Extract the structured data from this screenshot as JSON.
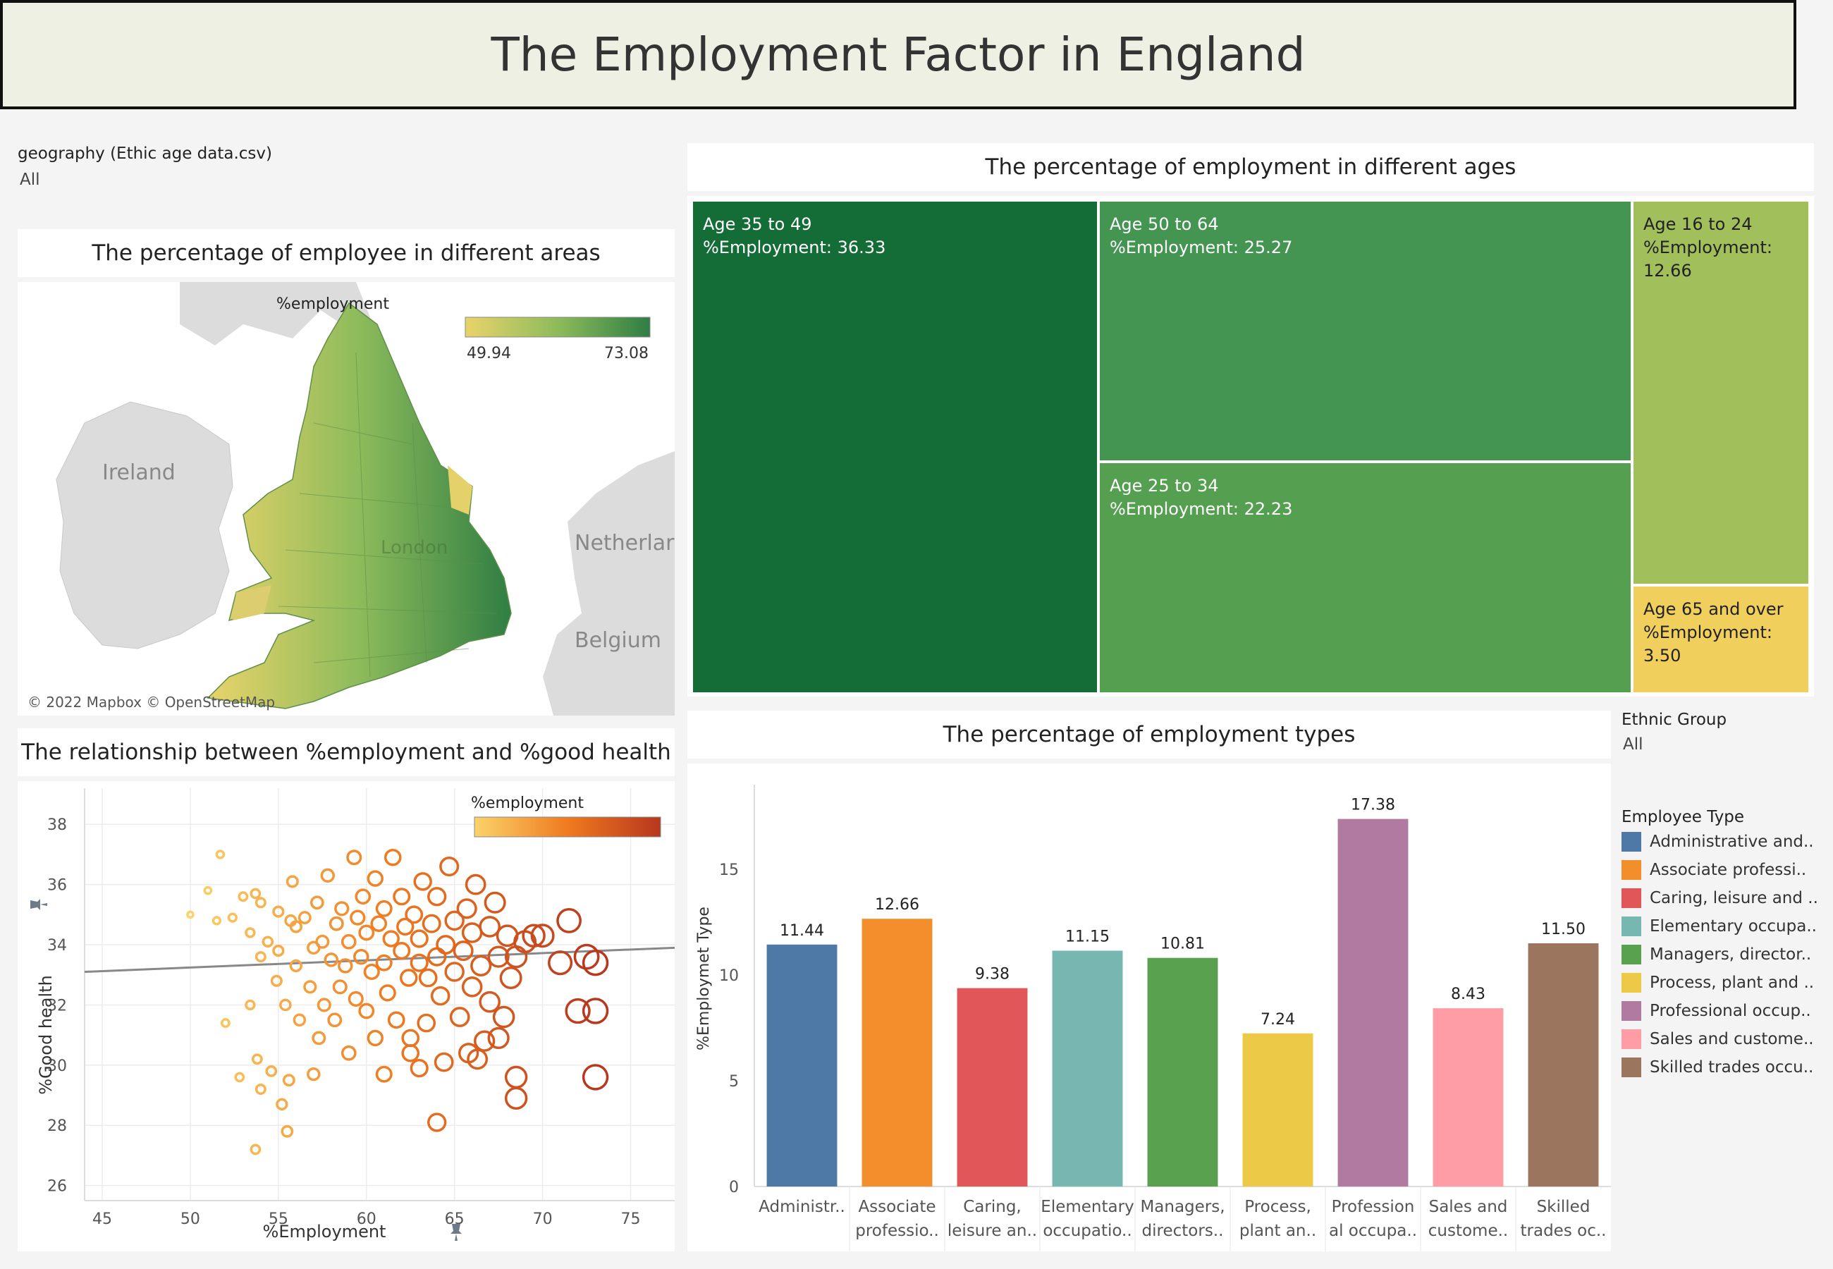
{
  "page_title": "The Employment Factor in England",
  "filters": {
    "geography": {
      "label": "geography (Ethic age data.csv)",
      "value": "All"
    },
    "ethnic": {
      "label": "Ethnic Group",
      "value": "All"
    }
  },
  "map": {
    "title": "The percentage of employee in different areas",
    "legend_title": "%employment",
    "legend_min": "49.94",
    "legend_max": "73.08",
    "labels": {
      "ireland": "Ireland",
      "netherlands": "Netherlar",
      "belgium": "Belgium",
      "london": "London"
    },
    "attribution": "© 2022 Mapbox © OpenStreetMap"
  },
  "scatter": {
    "title": "The relationship between %employment and %good health",
    "legend_title": "%employment",
    "xlabel": "%Employment",
    "ylabel": "%Good health"
  },
  "treemap": {
    "title": "The percentage of employment in different ages",
    "measure_label": "%Employment:",
    "cells": [
      {
        "label": "Age 35 to 49",
        "value": "36.33",
        "color": "#146c37",
        "text_color": "#ffffff"
      },
      {
        "label": "Age 50 to 64",
        "value": "25.27",
        "color": "#439551",
        "text_color": "#ffffff"
      },
      {
        "label": "Age 25 to 34",
        "value": "22.23",
        "color": "#55a050",
        "text_color": "#ffffff"
      },
      {
        "label": "Age 16 to 24",
        "value": "12.66",
        "color": "#a1bf5a",
        "text_color": "#222222"
      },
      {
        "label": "Age 65 and over",
        "value": "3.50",
        "color": "#f0cf5d",
        "text_color": "#222222"
      }
    ]
  },
  "bar": {
    "title": "The percentage of employment types",
    "legend_title": "Employee Type",
    "legend": [
      {
        "name": "Administrative and..",
        "color": "#4e79a7"
      },
      {
        "name": "Associate professi..",
        "color": "#f28e2b"
      },
      {
        "name": "Caring, leisure and ..",
        "color": "#e15759"
      },
      {
        "name": "Elementary occupa..",
        "color": "#76b7b2"
      },
      {
        "name": "Managers, director..",
        "color": "#59a14f"
      },
      {
        "name": "Process, plant and ..",
        "color": "#edc948"
      },
      {
        "name": "Professional occup..",
        "color": "#b07aa1"
      },
      {
        "name": "Sales and custome..",
        "color": "#ff9da7"
      },
      {
        "name": "Skilled trades occu..",
        "color": "#9c755f"
      }
    ]
  },
  "chart_data": [
    {
      "type": "bar",
      "title": "The percentage of employment types",
      "ylabel": "%Employmet Type",
      "xlabel": "",
      "categories": [
        [
          "Administr.."
        ],
        [
          "Associate",
          "professio.."
        ],
        [
          "Caring,",
          "leisure an.."
        ],
        [
          "Elementary",
          "occupatio.."
        ],
        [
          "Managers,",
          "directors.."
        ],
        [
          "Process,",
          "plant an.."
        ],
        [
          "Profession",
          "al occupa.."
        ],
        [
          "Sales and",
          "custome.."
        ],
        [
          "Skilled",
          "trades oc.."
        ]
      ],
      "values": [
        11.44,
        12.66,
        9.38,
        11.15,
        10.81,
        7.24,
        17.38,
        8.43,
        11.5
      ],
      "value_labels": [
        "11.44",
        "12.66",
        "9.38",
        "11.15",
        "10.81",
        "7.24",
        "17.38",
        "8.43",
        "11.50"
      ],
      "colors": [
        "#4e79a7",
        "#f28e2b",
        "#e15759",
        "#76b7b2",
        "#59a14f",
        "#edc948",
        "#b07aa1",
        "#ff9da7",
        "#9c755f"
      ],
      "ylim": [
        0,
        19
      ],
      "yticks": [
        0,
        5,
        10,
        15
      ],
      "grid": false
    },
    {
      "type": "scatter",
      "title": "The relationship between %employment and %good health",
      "xlabel": "%Employment",
      "ylabel": "%Good health",
      "xlim": [
        44,
        77.5
      ],
      "ylim": [
        25.5,
        39.2
      ],
      "xticks": [
        45,
        50,
        55,
        60,
        65,
        70,
        75
      ],
      "yticks": [
        26,
        28,
        30,
        32,
        34,
        36,
        38
      ],
      "color_range": [
        49.94,
        73.08
      ],
      "trend_line": [
        [
          44,
          33.1
        ],
        [
          77.5,
          33.9
        ]
      ],
      "grid": true,
      "points": [
        [
          50,
          35
        ],
        [
          51.5,
          34.8
        ],
        [
          51,
          35.8
        ],
        [
          51.7,
          37
        ],
        [
          52.4,
          34.9
        ],
        [
          52,
          31.4
        ],
        [
          52.8,
          29.6
        ],
        [
          53,
          35.6
        ],
        [
          53.4,
          32
        ],
        [
          53.4,
          34.4
        ],
        [
          53.7,
          35.7
        ],
        [
          53.8,
          30.2
        ],
        [
          54,
          33.6
        ],
        [
          54,
          29.2
        ],
        [
          54,
          35.4
        ],
        [
          54.4,
          34.1
        ],
        [
          54.6,
          29.8
        ],
        [
          54.9,
          32.8
        ],
        [
          55,
          33.8
        ],
        [
          55,
          35.1
        ],
        [
          55.2,
          28.7
        ],
        [
          55.4,
          32
        ],
        [
          55.6,
          29.5
        ],
        [
          55.7,
          34.8
        ],
        [
          55.8,
          36.1
        ],
        [
          56,
          34.6
        ],
        [
          56,
          33.3
        ],
        [
          56.2,
          31.5
        ],
        [
          56.5,
          34.9
        ],
        [
          56.8,
          32.6
        ],
        [
          57,
          33.9
        ],
        [
          57,
          29.7
        ],
        [
          57.2,
          35.4
        ],
        [
          57.3,
          30.9
        ],
        [
          57.5,
          34.1
        ],
        [
          57.6,
          32
        ],
        [
          57.8,
          36.3
        ],
        [
          58,
          33.5
        ],
        [
          58.2,
          31.5
        ],
        [
          58.3,
          34.7
        ],
        [
          58.5,
          32.6
        ],
        [
          58.6,
          35.2
        ],
        [
          58.8,
          33.3
        ],
        [
          59,
          34.1
        ],
        [
          59,
          30.4
        ],
        [
          59.3,
          36.9
        ],
        [
          59.4,
          32.2
        ],
        [
          59.5,
          34.9
        ],
        [
          59.7,
          33.6
        ],
        [
          59.8,
          35.6
        ],
        [
          60,
          31.8
        ],
        [
          60,
          34.4
        ],
        [
          60.3,
          33.1
        ],
        [
          60.5,
          36.2
        ],
        [
          60.5,
          30.9
        ],
        [
          60.7,
          34.7
        ],
        [
          61,
          33.4
        ],
        [
          61,
          35.2
        ],
        [
          61.2,
          32.4
        ],
        [
          61.4,
          34.2
        ],
        [
          61.5,
          36.9
        ],
        [
          61.7,
          31.5
        ],
        [
          62,
          33.8
        ],
        [
          62,
          35.6
        ],
        [
          62.2,
          34.6
        ],
        [
          62.4,
          32.9
        ],
        [
          62.5,
          30.9
        ],
        [
          62.7,
          35
        ],
        [
          63,
          33.4
        ],
        [
          63,
          34.2
        ],
        [
          63.2,
          36.1
        ],
        [
          63.4,
          31.4
        ],
        [
          63.5,
          32.9
        ],
        [
          63.7,
          34.7
        ],
        [
          64,
          33.6
        ],
        [
          64,
          35.6
        ],
        [
          64.2,
          32.3
        ],
        [
          64.4,
          30.1
        ],
        [
          64.5,
          34
        ],
        [
          64.7,
          36.6
        ],
        [
          65,
          33.1
        ],
        [
          65,
          34.8
        ],
        [
          65.3,
          31.6
        ],
        [
          65.5,
          33.8
        ],
        [
          65.7,
          35.2
        ],
        [
          66,
          32.6
        ],
        [
          66,
          34.4
        ],
        [
          66.2,
          36
        ],
        [
          66.5,
          33.3
        ],
        [
          66.7,
          30.8
        ],
        [
          67,
          34.6
        ],
        [
          67,
          32.1
        ],
        [
          67.3,
          35.4
        ],
        [
          67.5,
          33.6
        ],
        [
          67.8,
          31.6
        ],
        [
          68,
          34.3
        ],
        [
          68.2,
          32.9
        ],
        [
          68.5,
          33.6
        ],
        [
          69,
          34.1
        ],
        [
          69.5,
          34.3
        ],
        [
          70,
          34.3
        ],
        [
          71,
          33.4
        ],
        [
          71.5,
          34.8
        ],
        [
          72.5,
          33.6
        ],
        [
          72,
          31.8
        ],
        [
          73,
          33.4
        ],
        [
          73,
          31.8
        ],
        [
          73,
          29.6
        ],
        [
          68.5,
          29.6
        ],
        [
          68.5,
          28.9
        ],
        [
          64,
          28.1
        ],
        [
          55.5,
          27.8
        ],
        [
          53.7,
          27.2
        ],
        [
          62.5,
          30.4
        ],
        [
          61,
          29.7
        ],
        [
          63,
          29.9
        ],
        [
          65.8,
          30.4
        ],
        [
          67.5,
          30.9
        ],
        [
          66.3,
          30.2
        ]
      ]
    }
  ]
}
